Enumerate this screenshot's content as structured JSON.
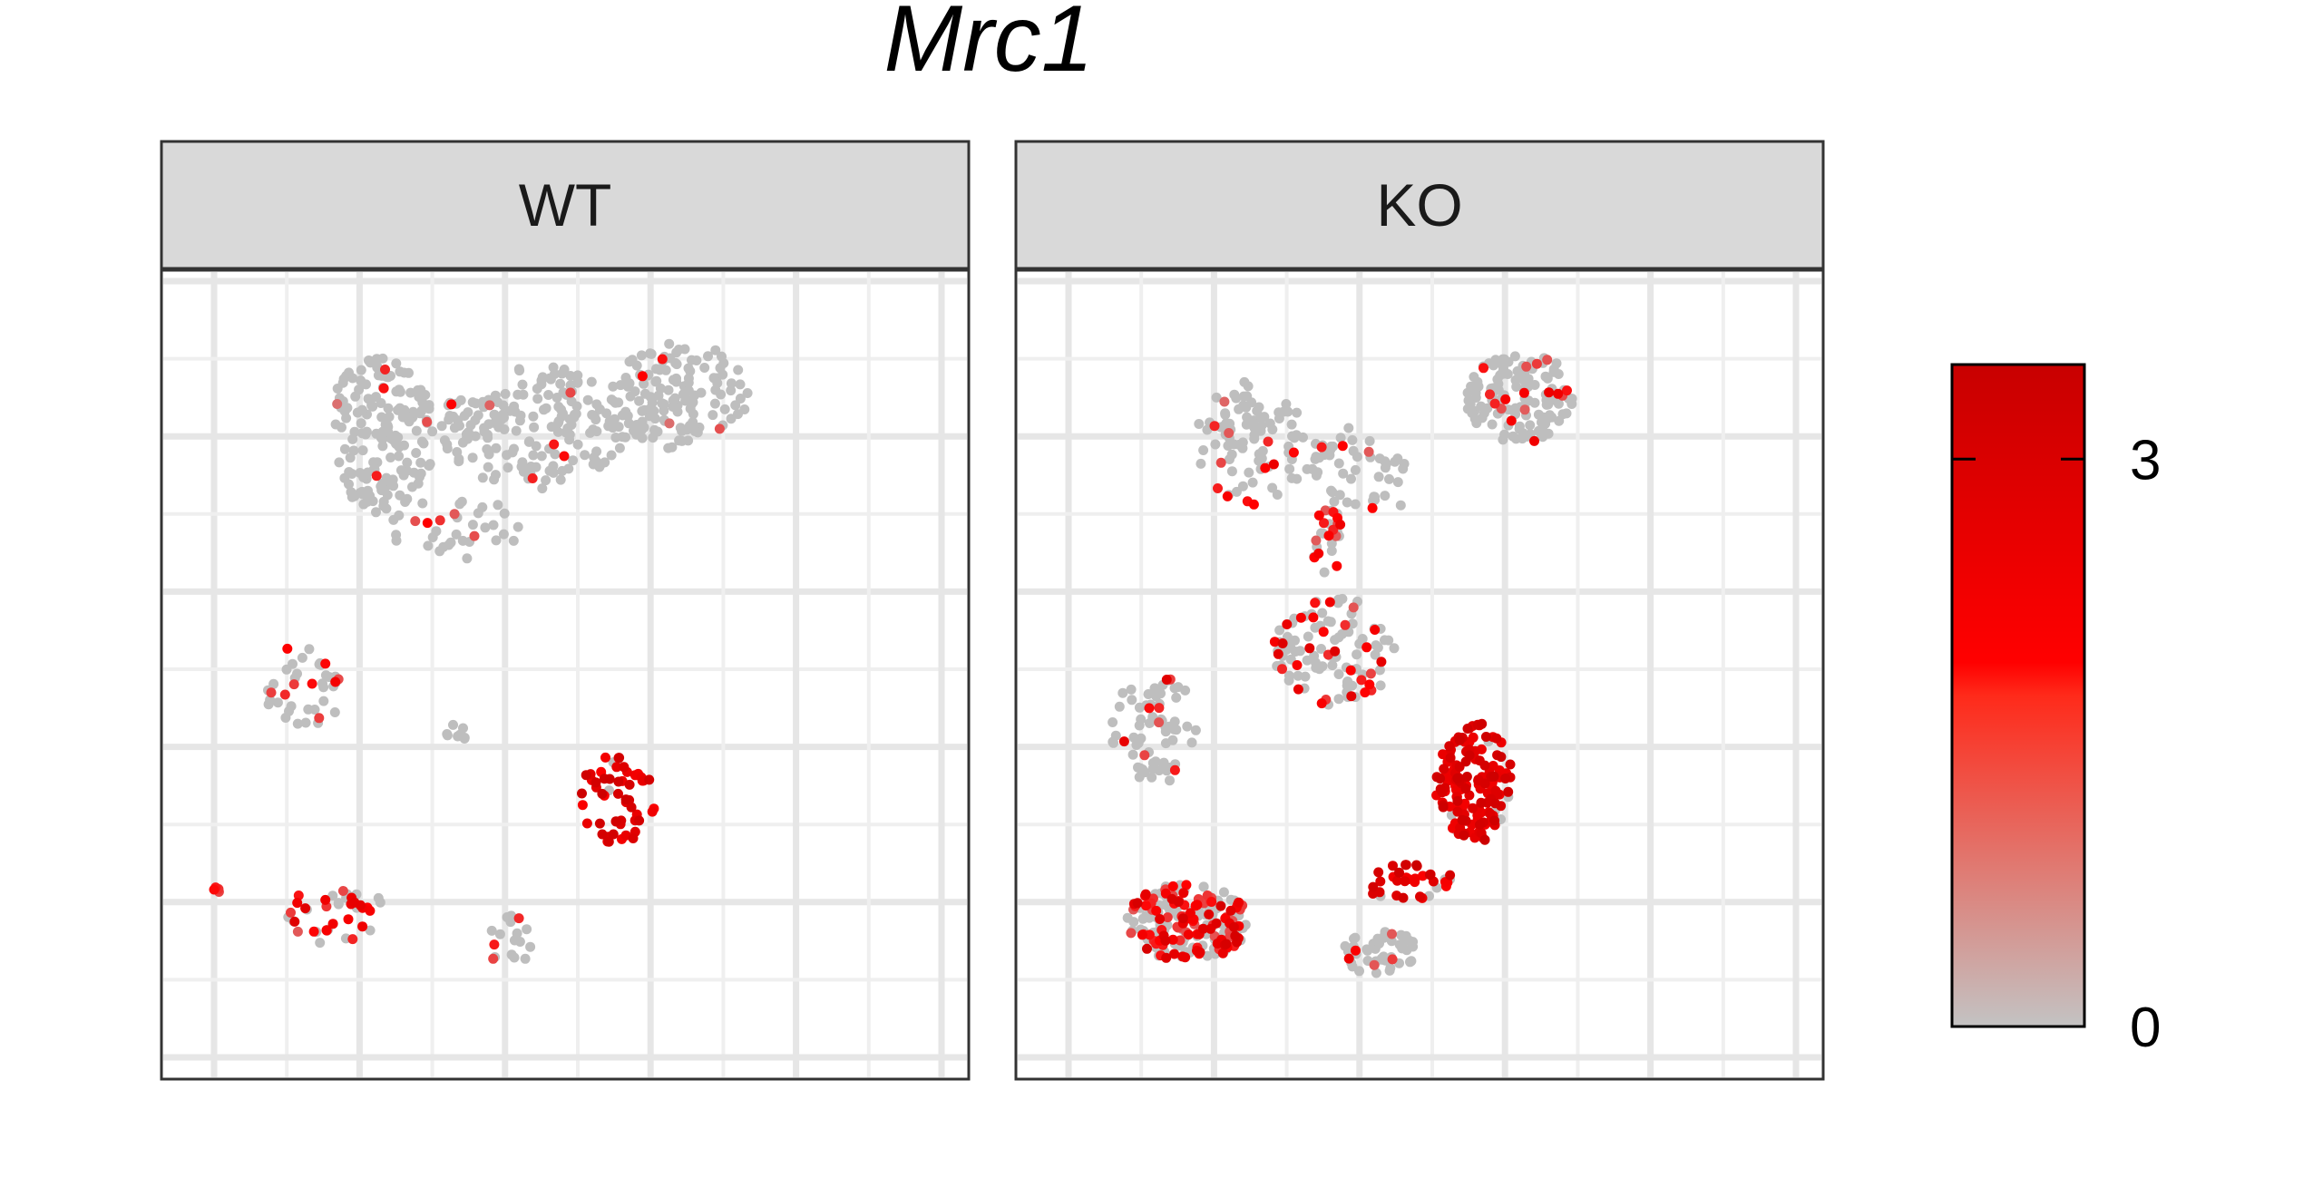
{
  "chart_data": {
    "type": "scatter",
    "title": "Mrc1",
    "facets": [
      "WT",
      "KO"
    ],
    "xlabel": "",
    "ylabel": "",
    "grid": true,
    "xlim": [
      0,
      10
    ],
    "ylim": [
      0,
      10
    ],
    "legend": {
      "placement": "right",
      "type": "colorbar",
      "min": 0,
      "max": 3.5,
      "ticks": [
        0,
        3
      ],
      "tick_labels": [
        "0",
        "3"
      ],
      "low_color": "#c0c0c0",
      "mid_color": "#ff0000",
      "high_color": "#cc0000"
    },
    "point_color_low": "#bebebe",
    "clusters": {
      "WT": [
        {
          "cx": 2.6,
          "cy": 8.1,
          "rx": 0.7,
          "ry": 1.0,
          "n": 170,
          "expr_prob": 0.05,
          "expr_range": [
            0.8,
            2.2
          ]
        },
        {
          "cx": 4.6,
          "cy": 8.2,
          "rx": 1.2,
          "ry": 0.8,
          "n": 180,
          "expr_prob": 0.02,
          "expr_range": [
            0.8,
            2.0
          ]
        },
        {
          "cx": 6.5,
          "cy": 8.6,
          "rx": 0.9,
          "ry": 0.7,
          "n": 140,
          "expr_prob": 0.03,
          "expr_range": [
            0.8,
            2.0
          ]
        },
        {
          "cx": 3.6,
          "cy": 6.9,
          "rx": 0.9,
          "ry": 0.4,
          "n": 35,
          "expr_prob": 0.1,
          "expr_range": [
            1.0,
            2.0
          ]
        },
        {
          "cx": 1.6,
          "cy": 4.8,
          "rx": 0.5,
          "ry": 0.6,
          "n": 40,
          "expr_prob": 0.3,
          "expr_range": [
            1.0,
            2.5
          ]
        },
        {
          "cx": 5.7,
          "cy": 3.4,
          "rx": 0.5,
          "ry": 0.6,
          "n": 55,
          "expr_prob": 0.95,
          "expr_range": [
            2.0,
            3.5
          ]
        },
        {
          "cx": 2.0,
          "cy": 1.9,
          "rx": 0.7,
          "ry": 0.4,
          "n": 40,
          "expr_prob": 0.55,
          "expr_range": [
            1.0,
            3.0
          ]
        },
        {
          "cx": 4.3,
          "cy": 1.5,
          "rx": 0.3,
          "ry": 0.4,
          "n": 18,
          "expr_prob": 0.1,
          "expr_range": [
            1.0,
            2.5
          ]
        },
        {
          "cx": 3.6,
          "cy": 4.3,
          "rx": 0.2,
          "ry": 0.15,
          "n": 8,
          "expr_prob": 0.0,
          "expr_range": [
            0,
            0
          ]
        },
        {
          "cx": 0.5,
          "cy": 2.2,
          "rx": 0.1,
          "ry": 0.05,
          "n": 4,
          "expr_prob": 0.8,
          "expr_range": [
            1.0,
            2.0
          ]
        }
      ],
      "KO": [
        {
          "cx": 2.8,
          "cy": 8.0,
          "rx": 0.7,
          "ry": 0.8,
          "n": 90,
          "expr_prob": 0.12,
          "expr_range": [
            0.8,
            2.5
          ]
        },
        {
          "cx": 4.2,
          "cy": 7.6,
          "rx": 0.8,
          "ry": 0.6,
          "n": 55,
          "expr_prob": 0.1,
          "expr_range": [
            0.8,
            2.0
          ]
        },
        {
          "cx": 6.3,
          "cy": 8.6,
          "rx": 0.7,
          "ry": 0.6,
          "n": 140,
          "expr_prob": 0.15,
          "expr_range": [
            0.8,
            2.5
          ]
        },
        {
          "cx": 3.9,
          "cy": 5.3,
          "rx": 0.8,
          "ry": 0.7,
          "n": 110,
          "expr_prob": 0.25,
          "expr_range": [
            1.0,
            3.0
          ]
        },
        {
          "cx": 1.6,
          "cy": 4.3,
          "rx": 0.6,
          "ry": 0.7,
          "n": 70,
          "expr_prob": 0.15,
          "expr_range": [
            1.0,
            3.0
          ]
        },
        {
          "cx": 5.7,
          "cy": 3.6,
          "rx": 0.5,
          "ry": 0.8,
          "n": 150,
          "expr_prob": 0.95,
          "expr_range": [
            2.2,
            3.5
          ]
        },
        {
          "cx": 2.0,
          "cy": 1.8,
          "rx": 0.8,
          "ry": 0.5,
          "n": 210,
          "expr_prob": 0.55,
          "expr_range": [
            1.0,
            3.2
          ]
        },
        {
          "cx": 4.5,
          "cy": 1.4,
          "rx": 0.5,
          "ry": 0.3,
          "n": 50,
          "expr_prob": 0.15,
          "expr_range": [
            1.0,
            2.5
          ]
        },
        {
          "cx": 4.9,
          "cy": 2.3,
          "rx": 0.6,
          "ry": 0.25,
          "n": 35,
          "expr_prob": 0.85,
          "expr_range": [
            2.0,
            3.5
          ]
        },
        {
          "cx": 3.8,
          "cy": 6.7,
          "rx": 0.2,
          "ry": 0.5,
          "n": 25,
          "expr_prob": 0.4,
          "expr_range": [
            1.0,
            2.5
          ]
        }
      ]
    }
  }
}
